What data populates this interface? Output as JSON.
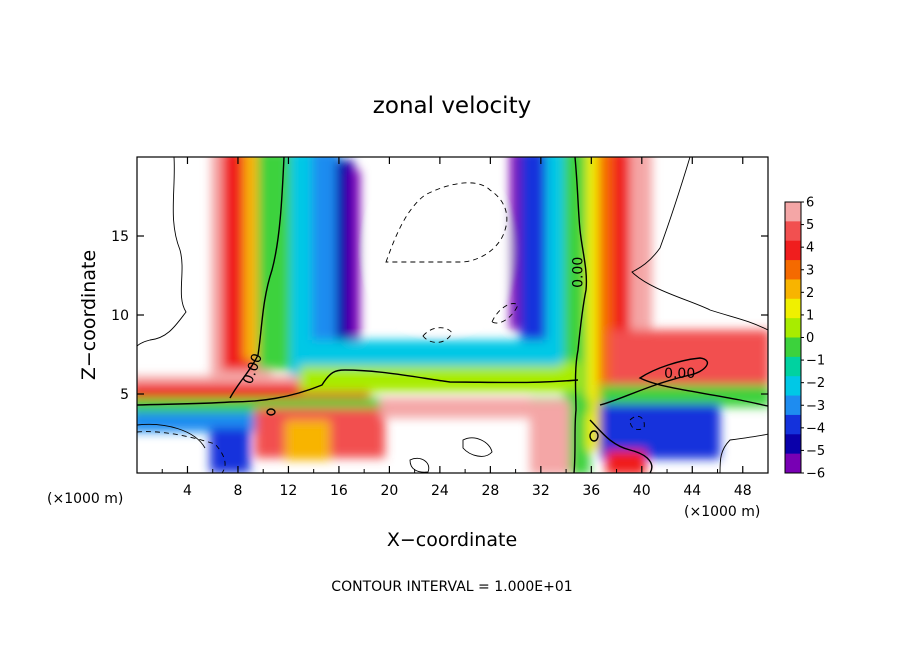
{
  "chart_data": {
    "type": "heatmap",
    "title": "zonal velocity",
    "xlabel": "X−coordinate",
    "ylabel": "Z−coordinate",
    "x_unit_left": "(×1000 m)",
    "x_unit_right": "(×1000 m)",
    "xlim": [
      0,
      50
    ],
    "ylim": [
      0,
      20
    ],
    "x_ticks": [
      4,
      8,
      12,
      16,
      20,
      24,
      28,
      32,
      36,
      40,
      44,
      48
    ],
    "y_ticks": [
      5,
      10,
      15
    ],
    "contour_label": "0.00",
    "contour_labels_at": [
      [
        9.5,
        6.5
      ],
      [
        35.3,
        12.7
      ],
      [
        43,
        6
      ]
    ],
    "colorbar": {
      "min": -6,
      "max": 6,
      "ticks": [
        6,
        5,
        4,
        3,
        2,
        1,
        0,
        -1,
        -2,
        -3,
        -4,
        -5,
        -6
      ],
      "tick_labels": [
        "6",
        "5",
        "4",
        "3",
        "2",
        "1",
        "0",
        "−1",
        "−2",
        "−3",
        "−4",
        "−5",
        "−6"
      ],
      "colors": [
        "#f4a6a6",
        "#f25050",
        "#f01e1e",
        "#f56a00",
        "#f8b400",
        "#f0f000",
        "#a8ec00",
        "#3cd23c",
        "#00d2a0",
        "#00c8e6",
        "#1e8cf0",
        "#1432dc",
        "#0a00aa",
        "#7800b4"
      ]
    },
    "footer": "CONTOUR INTERVAL = 1.000E+01"
  }
}
